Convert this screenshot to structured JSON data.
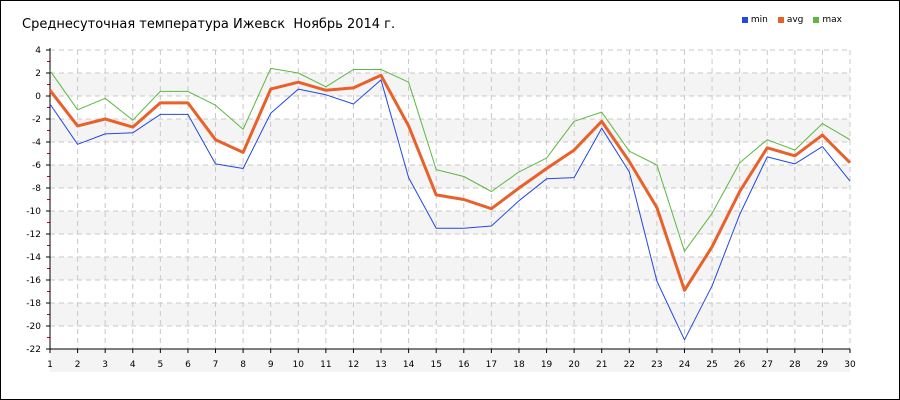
{
  "chart_data": {
    "type": "line",
    "title": "Среднесуточная температура Ижевск  Ноябрь 2014 г.",
    "xlabel": "",
    "ylabel": "",
    "x": [
      1,
      2,
      3,
      4,
      5,
      6,
      7,
      8,
      9,
      10,
      11,
      12,
      13,
      14,
      15,
      16,
      17,
      18,
      19,
      20,
      21,
      22,
      23,
      24,
      25,
      26,
      27,
      28,
      29,
      30
    ],
    "xlim": [
      1,
      30
    ],
    "ylim": [
      -22,
      4
    ],
    "yticks": [
      4,
      2,
      0,
      -2,
      -4,
      -6,
      -8,
      -10,
      -12,
      -14,
      -16,
      -18,
      -20,
      -22
    ],
    "grid": true,
    "legend_position": "top-right",
    "series": [
      {
        "name": "min",
        "color": "#2448e0",
        "values": [
          -0.7,
          -4.2,
          -3.3,
          -3.2,
          -1.6,
          -1.6,
          -5.9,
          -6.3,
          -1.5,
          0.6,
          0.1,
          -0.7,
          1.4,
          -7.1,
          -11.5,
          -11.5,
          -11.3,
          -9.1,
          -7.2,
          -7.1,
          -2.8,
          -6.6,
          -16.1,
          -21.2,
          -16.5,
          -10.3,
          -5.3,
          -5.9,
          -4.4,
          -7.4
        ]
      },
      {
        "name": "avg",
        "color": "#e8602a",
        "values": [
          0.5,
          -2.6,
          -2.0,
          -2.7,
          -0.6,
          -0.6,
          -3.8,
          -4.9,
          0.6,
          1.2,
          0.5,
          0.7,
          1.8,
          -2.6,
          -8.6,
          -9.0,
          -9.8,
          -8.0,
          -6.3,
          -4.7,
          -2.2,
          -5.7,
          -9.7,
          -16.9,
          -13.1,
          -8.3,
          -4.5,
          -5.2,
          -3.4,
          -5.8
        ]
      },
      {
        "name": "max",
        "color": "#5cb840",
        "values": [
          2.2,
          -1.2,
          -0.2,
          -2.1,
          0.4,
          0.4,
          -0.8,
          -2.9,
          2.4,
          2.0,
          0.8,
          2.3,
          2.3,
          1.2,
          -6.4,
          -7.0,
          -8.3,
          -6.6,
          -5.4,
          -2.2,
          -1.4,
          -4.8,
          -6.0,
          -13.5,
          -10.2,
          -5.8,
          -3.8,
          -4.7,
          -2.4,
          -3.8
        ]
      }
    ]
  }
}
